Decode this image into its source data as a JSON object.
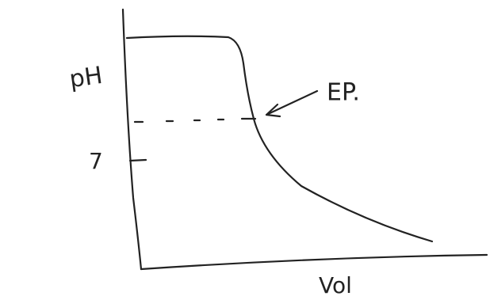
{
  "axes": {
    "y_label": "pH",
    "x_label": "Vol",
    "y_tick": "7"
  },
  "annotation": "EP."
}
